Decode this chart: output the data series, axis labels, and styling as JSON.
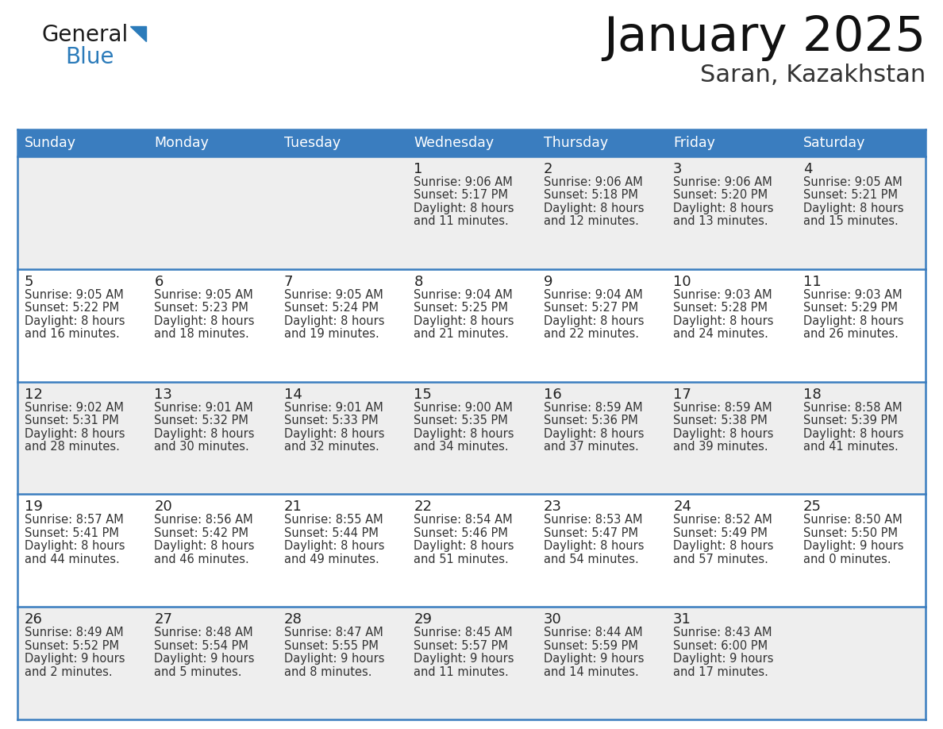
{
  "title": "January 2025",
  "subtitle": "Saran, Kazakhstan",
  "header_bg": "#3a7dbf",
  "header_text_color": "#ffffff",
  "row_bg_odd": "#eeeeee",
  "row_bg_even": "#ffffff",
  "border_color": "#3a7dbf",
  "day_names": [
    "Sunday",
    "Monday",
    "Tuesday",
    "Wednesday",
    "Thursday",
    "Friday",
    "Saturday"
  ],
  "days": [
    {
      "day": 1,
      "col": 3,
      "row": 0,
      "sunrise": "9:06 AM",
      "sunset": "5:17 PM",
      "dl1": "Daylight: 8 hours",
      "dl2": "and 11 minutes."
    },
    {
      "day": 2,
      "col": 4,
      "row": 0,
      "sunrise": "9:06 AM",
      "sunset": "5:18 PM",
      "dl1": "Daylight: 8 hours",
      "dl2": "and 12 minutes."
    },
    {
      "day": 3,
      "col": 5,
      "row": 0,
      "sunrise": "9:06 AM",
      "sunset": "5:20 PM",
      "dl1": "Daylight: 8 hours",
      "dl2": "and 13 minutes."
    },
    {
      "day": 4,
      "col": 6,
      "row": 0,
      "sunrise": "9:05 AM",
      "sunset": "5:21 PM",
      "dl1": "Daylight: 8 hours",
      "dl2": "and 15 minutes."
    },
    {
      "day": 5,
      "col": 0,
      "row": 1,
      "sunrise": "9:05 AM",
      "sunset": "5:22 PM",
      "dl1": "Daylight: 8 hours",
      "dl2": "and 16 minutes."
    },
    {
      "day": 6,
      "col": 1,
      "row": 1,
      "sunrise": "9:05 AM",
      "sunset": "5:23 PM",
      "dl1": "Daylight: 8 hours",
      "dl2": "and 18 minutes."
    },
    {
      "day": 7,
      "col": 2,
      "row": 1,
      "sunrise": "9:05 AM",
      "sunset": "5:24 PM",
      "dl1": "Daylight: 8 hours",
      "dl2": "and 19 minutes."
    },
    {
      "day": 8,
      "col": 3,
      "row": 1,
      "sunrise": "9:04 AM",
      "sunset": "5:25 PM",
      "dl1": "Daylight: 8 hours",
      "dl2": "and 21 minutes."
    },
    {
      "day": 9,
      "col": 4,
      "row": 1,
      "sunrise": "9:04 AM",
      "sunset": "5:27 PM",
      "dl1": "Daylight: 8 hours",
      "dl2": "and 22 minutes."
    },
    {
      "day": 10,
      "col": 5,
      "row": 1,
      "sunrise": "9:03 AM",
      "sunset": "5:28 PM",
      "dl1": "Daylight: 8 hours",
      "dl2": "and 24 minutes."
    },
    {
      "day": 11,
      "col": 6,
      "row": 1,
      "sunrise": "9:03 AM",
      "sunset": "5:29 PM",
      "dl1": "Daylight: 8 hours",
      "dl2": "and 26 minutes."
    },
    {
      "day": 12,
      "col": 0,
      "row": 2,
      "sunrise": "9:02 AM",
      "sunset": "5:31 PM",
      "dl1": "Daylight: 8 hours",
      "dl2": "and 28 minutes."
    },
    {
      "day": 13,
      "col": 1,
      "row": 2,
      "sunrise": "9:01 AM",
      "sunset": "5:32 PM",
      "dl1": "Daylight: 8 hours",
      "dl2": "and 30 minutes."
    },
    {
      "day": 14,
      "col": 2,
      "row": 2,
      "sunrise": "9:01 AM",
      "sunset": "5:33 PM",
      "dl1": "Daylight: 8 hours",
      "dl2": "and 32 minutes."
    },
    {
      "day": 15,
      "col": 3,
      "row": 2,
      "sunrise": "9:00 AM",
      "sunset": "5:35 PM",
      "dl1": "Daylight: 8 hours",
      "dl2": "and 34 minutes."
    },
    {
      "day": 16,
      "col": 4,
      "row": 2,
      "sunrise": "8:59 AM",
      "sunset": "5:36 PM",
      "dl1": "Daylight: 8 hours",
      "dl2": "and 37 minutes."
    },
    {
      "day": 17,
      "col": 5,
      "row": 2,
      "sunrise": "8:59 AM",
      "sunset": "5:38 PM",
      "dl1": "Daylight: 8 hours",
      "dl2": "and 39 minutes."
    },
    {
      "day": 18,
      "col": 6,
      "row": 2,
      "sunrise": "8:58 AM",
      "sunset": "5:39 PM",
      "dl1": "Daylight: 8 hours",
      "dl2": "and 41 minutes."
    },
    {
      "day": 19,
      "col": 0,
      "row": 3,
      "sunrise": "8:57 AM",
      "sunset": "5:41 PM",
      "dl1": "Daylight: 8 hours",
      "dl2": "and 44 minutes."
    },
    {
      "day": 20,
      "col": 1,
      "row": 3,
      "sunrise": "8:56 AM",
      "sunset": "5:42 PM",
      "dl1": "Daylight: 8 hours",
      "dl2": "and 46 minutes."
    },
    {
      "day": 21,
      "col": 2,
      "row": 3,
      "sunrise": "8:55 AM",
      "sunset": "5:44 PM",
      "dl1": "Daylight: 8 hours",
      "dl2": "and 49 minutes."
    },
    {
      "day": 22,
      "col": 3,
      "row": 3,
      "sunrise": "8:54 AM",
      "sunset": "5:46 PM",
      "dl1": "Daylight: 8 hours",
      "dl2": "and 51 minutes."
    },
    {
      "day": 23,
      "col": 4,
      "row": 3,
      "sunrise": "8:53 AM",
      "sunset": "5:47 PM",
      "dl1": "Daylight: 8 hours",
      "dl2": "and 54 minutes."
    },
    {
      "day": 24,
      "col": 5,
      "row": 3,
      "sunrise": "8:52 AM",
      "sunset": "5:49 PM",
      "dl1": "Daylight: 8 hours",
      "dl2": "and 57 minutes."
    },
    {
      "day": 25,
      "col": 6,
      "row": 3,
      "sunrise": "8:50 AM",
      "sunset": "5:50 PM",
      "dl1": "Daylight: 9 hours",
      "dl2": "and 0 minutes."
    },
    {
      "day": 26,
      "col": 0,
      "row": 4,
      "sunrise": "8:49 AM",
      "sunset": "5:52 PM",
      "dl1": "Daylight: 9 hours",
      "dl2": "and 2 minutes."
    },
    {
      "day": 27,
      "col": 1,
      "row": 4,
      "sunrise": "8:48 AM",
      "sunset": "5:54 PM",
      "dl1": "Daylight: 9 hours",
      "dl2": "and 5 minutes."
    },
    {
      "day": 28,
      "col": 2,
      "row": 4,
      "sunrise": "8:47 AM",
      "sunset": "5:55 PM",
      "dl1": "Daylight: 9 hours",
      "dl2": "and 8 minutes."
    },
    {
      "day": 29,
      "col": 3,
      "row": 4,
      "sunrise": "8:45 AM",
      "sunset": "5:57 PM",
      "dl1": "Daylight: 9 hours",
      "dl2": "and 11 minutes."
    },
    {
      "day": 30,
      "col": 4,
      "row": 4,
      "sunrise": "8:44 AM",
      "sunset": "5:59 PM",
      "dl1": "Daylight: 9 hours",
      "dl2": "and 14 minutes."
    },
    {
      "day": 31,
      "col": 5,
      "row": 4,
      "sunrise": "8:43 AM",
      "sunset": "6:00 PM",
      "dl1": "Daylight: 9 hours",
      "dl2": "and 17 minutes."
    }
  ],
  "num_rows": 5,
  "logo_general_color": "#1a1a1a",
  "logo_blue_color": "#2b7bba"
}
